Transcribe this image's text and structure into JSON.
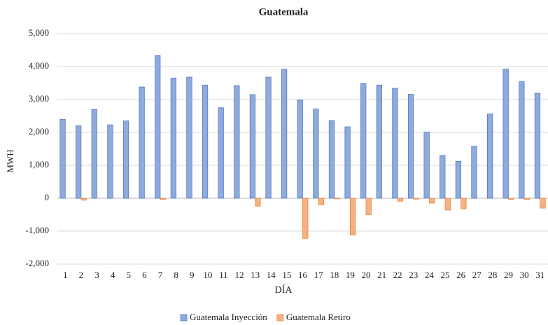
{
  "chart_data": {
    "type": "bar",
    "title": "Guatemala",
    "x_label": "DÍA",
    "y_label": "MWH",
    "categories": [
      "1",
      "2",
      "3",
      "4",
      "5",
      "6",
      "7",
      "8",
      "9",
      "10",
      "11",
      "12",
      "13",
      "14",
      "15",
      "16",
      "17",
      "18",
      "19",
      "20",
      "21",
      "22",
      "23",
      "24",
      "25",
      "26",
      "27",
      "28",
      "29",
      "30",
      "31"
    ],
    "series": [
      {
        "name": "Guatemala Inyección",
        "color": "#8faadc",
        "values": [
          2400,
          2200,
          2700,
          2230,
          2350,
          3380,
          4330,
          3650,
          3680,
          3440,
          2750,
          3420,
          3150,
          3680,
          3920,
          2980,
          2710,
          2360,
          2170,
          3480,
          3440,
          3340,
          3160,
          2010,
          1300,
          1120,
          1580,
          2560,
          3920,
          3540,
          3190
        ]
      },
      {
        "name": "Guatemala Retiro",
        "color": "#f4b183",
        "values": [
          0,
          -60,
          0,
          0,
          0,
          0,
          -40,
          0,
          0,
          0,
          0,
          0,
          -240,
          0,
          0,
          -1220,
          -200,
          -20,
          -1120,
          -500,
          0,
          -90,
          -30,
          -150,
          -360,
          -320,
          0,
          0,
          -40,
          -40,
          -300
        ]
      }
    ],
    "ylim": [
      -2000,
      5000
    ],
    "yticks": [
      {
        "value": -2000,
        "label": "-2,000"
      },
      {
        "value": -1000,
        "label": "-1,000"
      },
      0,
      {
        "value": 1000,
        "label": "1,000"
      },
      {
        "value": 2000,
        "label": "2,000"
      },
      {
        "value": 3000,
        "label": "3,000"
      },
      {
        "value": 4000,
        "label": "4,000"
      },
      {
        "value": 5000,
        "label": "5,000"
      }
    ],
    "grid": true,
    "legend": "bottom"
  }
}
